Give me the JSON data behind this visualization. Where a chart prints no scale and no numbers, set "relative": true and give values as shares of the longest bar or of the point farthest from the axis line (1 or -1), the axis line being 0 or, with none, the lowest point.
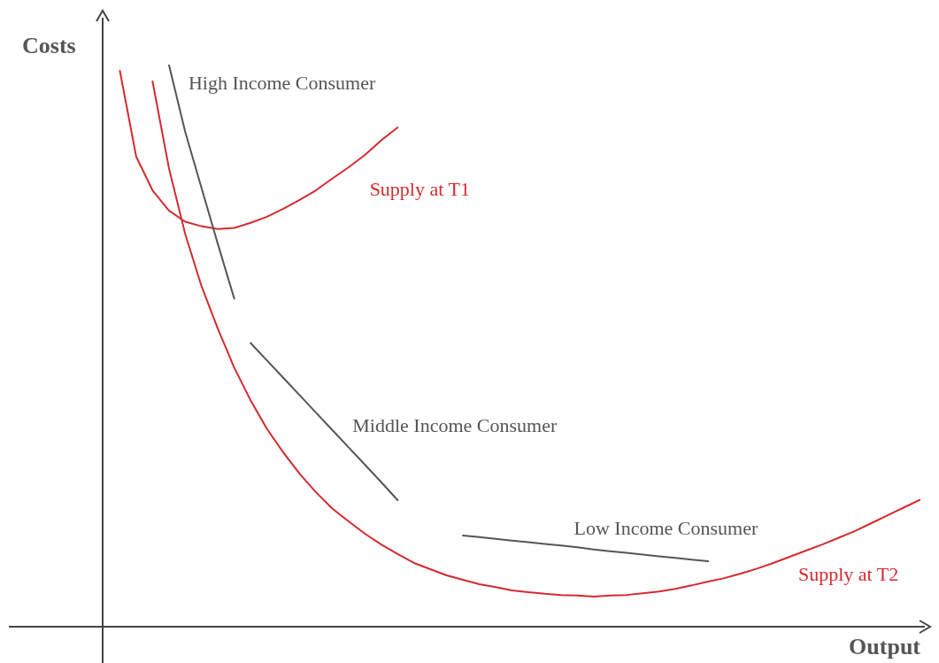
{
  "chart_data": {
    "type": "line",
    "relative": true,
    "xlabel": "Output",
    "ylabel": "Costs",
    "marker": "none",
    "line_style": "solid",
    "categories": [
      null,
      null,
      null,
      null,
      null,
      null,
      null,
      null,
      null,
      null,
      null,
      null,
      null,
      null,
      null,
      null,
      null,
      null,
      null,
      null,
      null,
      null,
      null,
      null,
      null,
      null,
      null,
      null,
      null,
      null,
      null,
      null,
      null,
      null,
      null,
      null,
      null,
      null,
      null,
      null,
      null,
      null,
      null,
      null,
      null,
      null,
      null,
      null,
      null,
      null,
      null
    ],
    "series": [
      {
        "name": "Supply at T1",
        "color": "#d42a2f",
        "values": [
          null,
          0.989,
          0.836,
          0.776,
          0.74,
          0.72,
          0.712,
          0.707,
          0.709,
          0.718,
          0.729,
          0.743,
          0.759,
          0.776,
          0.797,
          0.817,
          0.839,
          0.865,
          0.888,
          null,
          null,
          null,
          null,
          null,
          null,
          null,
          null,
          null,
          null,
          null,
          null,
          null,
          null,
          null,
          null,
          null,
          null,
          null,
          null,
          null,
          null,
          null,
          null,
          null,
          null,
          null,
          null,
          null,
          null,
          null,
          null
        ]
      },
      {
        "name": "Supply at T2",
        "color": "#d42a2f",
        "values": [
          null,
          null,
          null,
          0.97,
          0.816,
          0.698,
          0.605,
          0.529,
          0.46,
          0.402,
          0.351,
          0.309,
          0.271,
          0.238,
          0.209,
          0.186,
          0.164,
          0.145,
          0.128,
          0.112,
          0.101,
          0.09,
          0.082,
          0.074,
          0.069,
          0.063,
          0.06,
          0.057,
          0.055,
          0.054,
          0.052,
          0.054,
          0.055,
          0.058,
          0.061,
          0.066,
          0.072,
          0.079,
          0.085,
          0.093,
          0.102,
          0.112,
          0.123,
          0.134,
          0.145,
          0.157,
          0.169,
          0.183,
          0.197,
          0.211,
          0.225
        ]
      },
      {
        "name": "High Income Consumer",
        "color": "#555555",
        "values": [
          null,
          null,
          null,
          null,
          1.0,
          0.88,
          0.78,
          0.68,
          0.583,
          null,
          null,
          null,
          null,
          null,
          null,
          null,
          null,
          null,
          null,
          null,
          null,
          null,
          null,
          null,
          null,
          null,
          null,
          null,
          null,
          null,
          null,
          null,
          null,
          null,
          null,
          null,
          null,
          null,
          null,
          null,
          null,
          null,
          null,
          null,
          null,
          null,
          null,
          null,
          null,
          null,
          null
        ]
      },
      {
        "name": "Middle Income Consumer",
        "color": "#555555",
        "values": [
          null,
          null,
          null,
          null,
          null,
          null,
          null,
          null,
          null,
          0.504,
          0.473,
          0.442,
          0.411,
          0.38,
          0.349,
          0.318,
          0.287,
          0.256,
          0.224,
          null,
          null,
          null,
          null,
          null,
          null,
          null,
          null,
          null,
          null,
          null,
          null,
          null,
          null,
          null,
          null,
          null,
          null,
          null,
          null,
          null,
          null,
          null,
          null,
          null,
          null,
          null,
          null,
          null,
          null,
          null,
          null
        ]
      },
      {
        "name": "Low Income Consumer",
        "color": "#555555",
        "values": [
          null,
          null,
          null,
          null,
          null,
          null,
          null,
          null,
          null,
          null,
          null,
          null,
          null,
          null,
          null,
          null,
          null,
          null,
          null,
          null,
          null,
          null,
          0.161,
          0.158,
          0.155,
          0.152,
          0.149,
          0.146,
          0.143,
          0.14,
          0.136,
          0.133,
          0.13,
          0.127,
          0.124,
          0.121,
          0.118,
          0.115,
          null,
          null,
          null,
          null,
          null,
          null,
          null,
          null,
          null,
          null,
          null,
          null,
          null
        ]
      }
    ]
  }
}
